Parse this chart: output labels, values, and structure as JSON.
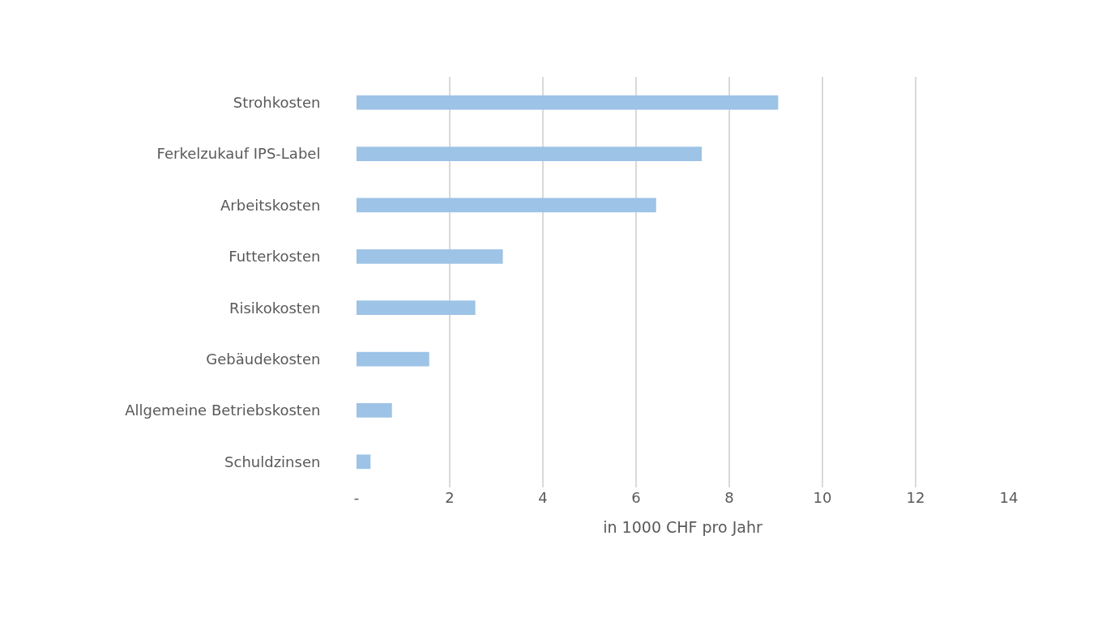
{
  "chart_data": {
    "type": "bar",
    "orientation": "horizontal",
    "xlabel": "in 1000 CHF pro Jahr",
    "categories": [
      "Strohkosten",
      "Ferkelzukauf IPS-Label",
      "Arbeitskosten",
      "Futterkosten",
      "Risikokosten",
      "Gebäudekosten",
      "Allgemeine Betriebskosten",
      "Schuldzinsen"
    ],
    "values": [
      9.05,
      7.41,
      6.43,
      3.14,
      2.55,
      1.56,
      0.76,
      0.3
    ],
    "color": "#9dc3e6",
    "xlim": [
      0,
      14
    ],
    "xticks": [
      {
        "value": 0,
        "label": "-"
      },
      2,
      4,
      6,
      8,
      10,
      12,
      14
    ],
    "grid": "x"
  }
}
